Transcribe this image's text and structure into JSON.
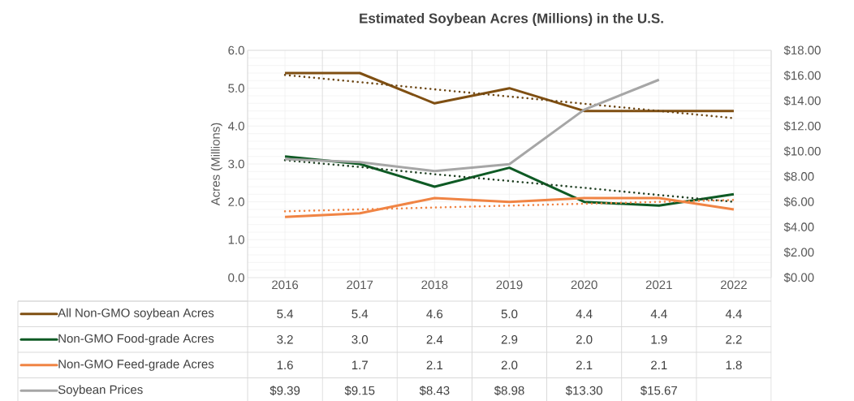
{
  "chart_data": {
    "type": "line",
    "title": "Estimated Soybean Acres (Millions) in the U.S.",
    "ylabel": "Acres (Millions)",
    "categories": [
      "2016",
      "2017",
      "2018",
      "2019",
      "2020",
      "2021",
      "2022"
    ],
    "series": [
      {
        "name": "All Non-GMO soybean Acres",
        "color": "#7f4f12",
        "values": [
          5.4,
          5.4,
          4.6,
          5.0,
          4.4,
          4.4,
          4.4
        ],
        "value_labels": [
          "5.4",
          "5.4",
          "4.6",
          "5.0",
          "4.4",
          "4.4",
          "4.4"
        ]
      },
      {
        "name": "Non-GMO Food-grade Acres",
        "color": "#0e5a24",
        "values": [
          3.2,
          3.0,
          2.4,
          2.9,
          2.0,
          1.9,
          2.2
        ],
        "value_labels": [
          "3.2",
          "3.0",
          "2.4",
          "2.9",
          "2.0",
          "1.9",
          "2.2"
        ]
      },
      {
        "name": "Non-GMO Feed-grade Acres",
        "color": "#f08444",
        "values": [
          1.6,
          1.7,
          2.1,
          2.0,
          2.1,
          2.1,
          1.8
        ],
        "value_labels": [
          "1.6",
          "1.7",
          "2.1",
          "2.0",
          "2.1",
          "2.1",
          "1.8"
        ]
      },
      {
        "name": "Soybean Prices",
        "color": "#a6a6a6",
        "axis": "y2",
        "values": [
          9.39,
          9.15,
          8.43,
          8.98,
          13.3,
          15.67,
          null
        ],
        "value_labels": [
          "$9.39",
          "$9.15",
          "$8.43",
          "$8.98",
          "$13.30",
          "$15.67",
          null
        ]
      },
      {
        "color": "#6b4512",
        "line_style": "dotted",
        "values": [
          5.35,
          5.16,
          4.97,
          4.78,
          4.59,
          4.4,
          4.21
        ]
      },
      {
        "color": "#1f3f22",
        "line_style": "dotted",
        "values": [
          3.1,
          2.92,
          2.73,
          2.55,
          2.37,
          2.18,
          2.0
        ]
      },
      {
        "color": "#f08444",
        "line_style": "dotted",
        "values": [
          1.75,
          1.8,
          1.85,
          1.9,
          1.95,
          2.0,
          2.05
        ]
      }
    ],
    "ylim": [
      0,
      6
    ],
    "yticks": [
      {
        "value": 0,
        "label": "0.0"
      },
      {
        "value": 1,
        "label": "1.0"
      },
      {
        "value": 2,
        "label": "2.0"
      },
      {
        "value": 3,
        "label": "3.0"
      },
      {
        "value": 4,
        "label": "4.0"
      },
      {
        "value": 5,
        "label": "5.0"
      },
      {
        "value": 6,
        "label": "6.0"
      }
    ],
    "y2lim": [
      0,
      18
    ],
    "y2ticks": [
      {
        "value": 0,
        "label": "$0.00"
      },
      {
        "value": 2,
        "label": "$2.00"
      },
      {
        "value": 4,
        "label": "$4.00"
      },
      {
        "value": 6,
        "label": "$6.00"
      },
      {
        "value": 8,
        "label": "$8.00"
      },
      {
        "value": 10,
        "label": "$10.00"
      },
      {
        "value": 12,
        "label": "$12.00"
      },
      {
        "value": 14,
        "label": "$14.00"
      },
      {
        "value": 16,
        "label": "$16.00"
      },
      {
        "value": 18,
        "label": "$18.00"
      }
    ],
    "grid": true,
    "legend": "bottom"
  }
}
